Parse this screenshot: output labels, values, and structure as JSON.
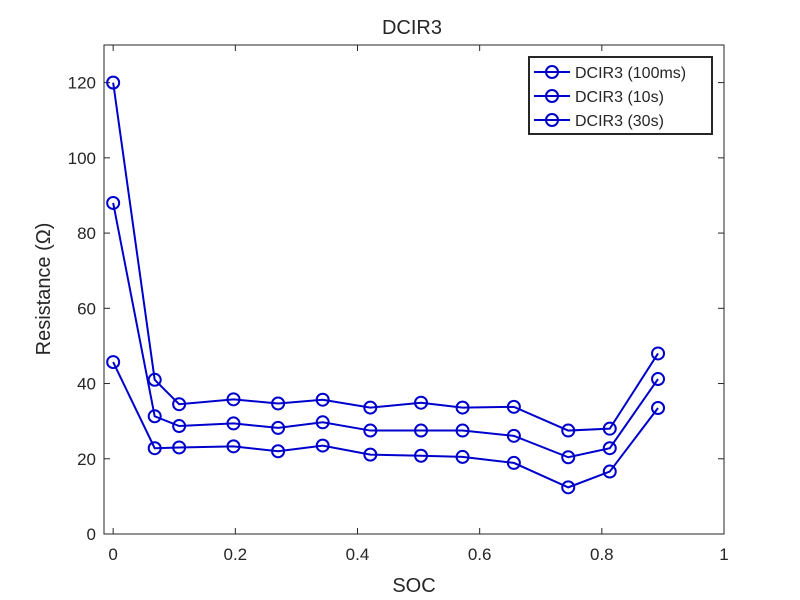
{
  "chart_data": {
    "type": "line",
    "title": "DCIR3",
    "xlabel": "SOC",
    "ylabel": "Resistance (Ω)",
    "xlim": [
      -0.015,
      1
    ],
    "ylim": [
      0,
      130
    ],
    "xticks": [
      0,
      0.2,
      0.4,
      0.6,
      0.8,
      1
    ],
    "xtick_labels": [
      "0",
      "0.2",
      "0.4",
      "0.6",
      "0.8",
      "1"
    ],
    "yticks": [
      0,
      20,
      40,
      60,
      80,
      100,
      120
    ],
    "ytick_labels": [
      "0",
      "20",
      "40",
      "60",
      "80",
      "100",
      "120"
    ],
    "grid": false,
    "legend_position": "top-right",
    "marker": "circle",
    "color": "#0000CD",
    "x": [
      0,
      0.068,
      0.108,
      0.197,
      0.27,
      0.343,
      0.421,
      0.504,
      0.572,
      0.656,
      0.745,
      0.813,
      0.892
    ],
    "series": [
      {
        "name": "DCIR3 (100ms)",
        "values": [
          120,
          41,
          34.5,
          35.8,
          34.7,
          35.7,
          33.6,
          34.9,
          33.6,
          33.8,
          27.5,
          28,
          48
        ]
      },
      {
        "name": "DCIR3 (10s)",
        "values": [
          88,
          31.3,
          28.7,
          29.4,
          28.2,
          29.7,
          27.5,
          27.5,
          27.5,
          26.1,
          20.4,
          22.8,
          41.2
        ]
      },
      {
        "name": "DCIR3 (30s)",
        "values": [
          45.7,
          22.8,
          23.0,
          23.3,
          22.0,
          23.5,
          21.1,
          20.8,
          20.5,
          18.9,
          12.4,
          16.6,
          33.5
        ]
      }
    ]
  }
}
